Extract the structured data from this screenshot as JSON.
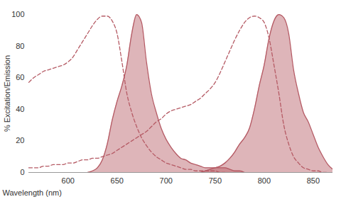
{
  "chart_data": {
    "type": "line",
    "xlabel": "Wavelength (nm)",
    "ylabel": "% Excitation/Emission",
    "xlim": [
      560,
      870
    ],
    "xticks": [
      600,
      650,
      700,
      750,
      800,
      850
    ],
    "ylim": [
      0,
      100
    ],
    "yticks": [
      0,
      20,
      40,
      60,
      80,
      100
    ],
    "grid": false,
    "x": [
      560,
      565,
      570,
      575,
      580,
      585,
      590,
      595,
      600,
      605,
      610,
      615,
      620,
      625,
      630,
      635,
      640,
      645,
      650,
      655,
      660,
      665,
      670,
      675,
      680,
      685,
      690,
      695,
      700,
      705,
      710,
      715,
      720,
      725,
      730,
      735,
      740,
      745,
      750,
      755,
      760,
      765,
      770,
      775,
      780,
      785,
      790,
      795,
      800,
      805,
      810,
      815,
      820,
      825,
      830,
      835,
      840,
      845,
      850,
      855,
      860,
      865,
      870
    ],
    "series": [
      {
        "type": "line",
        "line_style": "dashed",
        "color": "#b55a64",
        "values": [
          57,
          60,
          62,
          64,
          65,
          66,
          67,
          68,
          70,
          73,
          78,
          83,
          88,
          93,
          97,
          99,
          99,
          96,
          88,
          70,
          50,
          38,
          29,
          22,
          17,
          13,
          10,
          8,
          6,
          5,
          4,
          3,
          2,
          2,
          1,
          1,
          1,
          1,
          1,
          0,
          0,
          null,
          null,
          null,
          null,
          null,
          null,
          null,
          null,
          null,
          null,
          null,
          null,
          null,
          null,
          null,
          null,
          null,
          null,
          null,
          null,
          null,
          null
        ]
      },
      {
        "type": "area",
        "line_style": "solid",
        "color": "#b55a64",
        "values": [
          null,
          null,
          null,
          null,
          null,
          null,
          null,
          null,
          null,
          null,
          null,
          null,
          0,
          1,
          3,
          8,
          18,
          33,
          45,
          55,
          68,
          88,
          100,
          95,
          70,
          50,
          38,
          28,
          21,
          16,
          12,
          9,
          8,
          6,
          5,
          4,
          3,
          3,
          3,
          3,
          3,
          2,
          1,
          1,
          0,
          null,
          null,
          null,
          null,
          null,
          null,
          null,
          null,
          null,
          null,
          null,
          null,
          null,
          null,
          null,
          null,
          null,
          null
        ]
      },
      {
        "type": "line",
        "line_style": "dashed",
        "color": "#b55a64",
        "values": [
          3,
          3,
          3,
          4,
          4,
          5,
          5,
          5,
          6,
          6,
          7,
          8,
          8,
          9,
          9,
          10,
          11,
          12,
          14,
          16,
          18,
          20,
          22,
          24,
          26,
          29,
          32,
          34,
          37,
          39,
          40,
          41,
          42,
          43,
          45,
          47,
          50,
          53,
          57,
          63,
          70,
          77,
          84,
          90,
          95,
          98,
          99,
          98,
          95,
          85,
          68,
          50,
          30,
          18,
          10,
          6,
          3,
          2,
          1,
          1,
          0,
          0,
          null
        ]
      },
      {
        "type": "area",
        "line_style": "solid",
        "color": "#b55a64",
        "values": [
          null,
          null,
          null,
          null,
          null,
          null,
          null,
          null,
          null,
          null,
          null,
          null,
          null,
          null,
          null,
          null,
          null,
          null,
          null,
          null,
          null,
          null,
          null,
          null,
          null,
          null,
          null,
          null,
          null,
          null,
          null,
          null,
          null,
          null,
          null,
          0,
          1,
          2,
          3,
          4,
          6,
          9,
          13,
          18,
          22,
          28,
          40,
          55,
          68,
          85,
          96,
          100,
          98,
          88,
          65,
          50,
          38,
          32,
          24,
          16,
          10,
          5,
          2
        ]
      }
    ]
  }
}
